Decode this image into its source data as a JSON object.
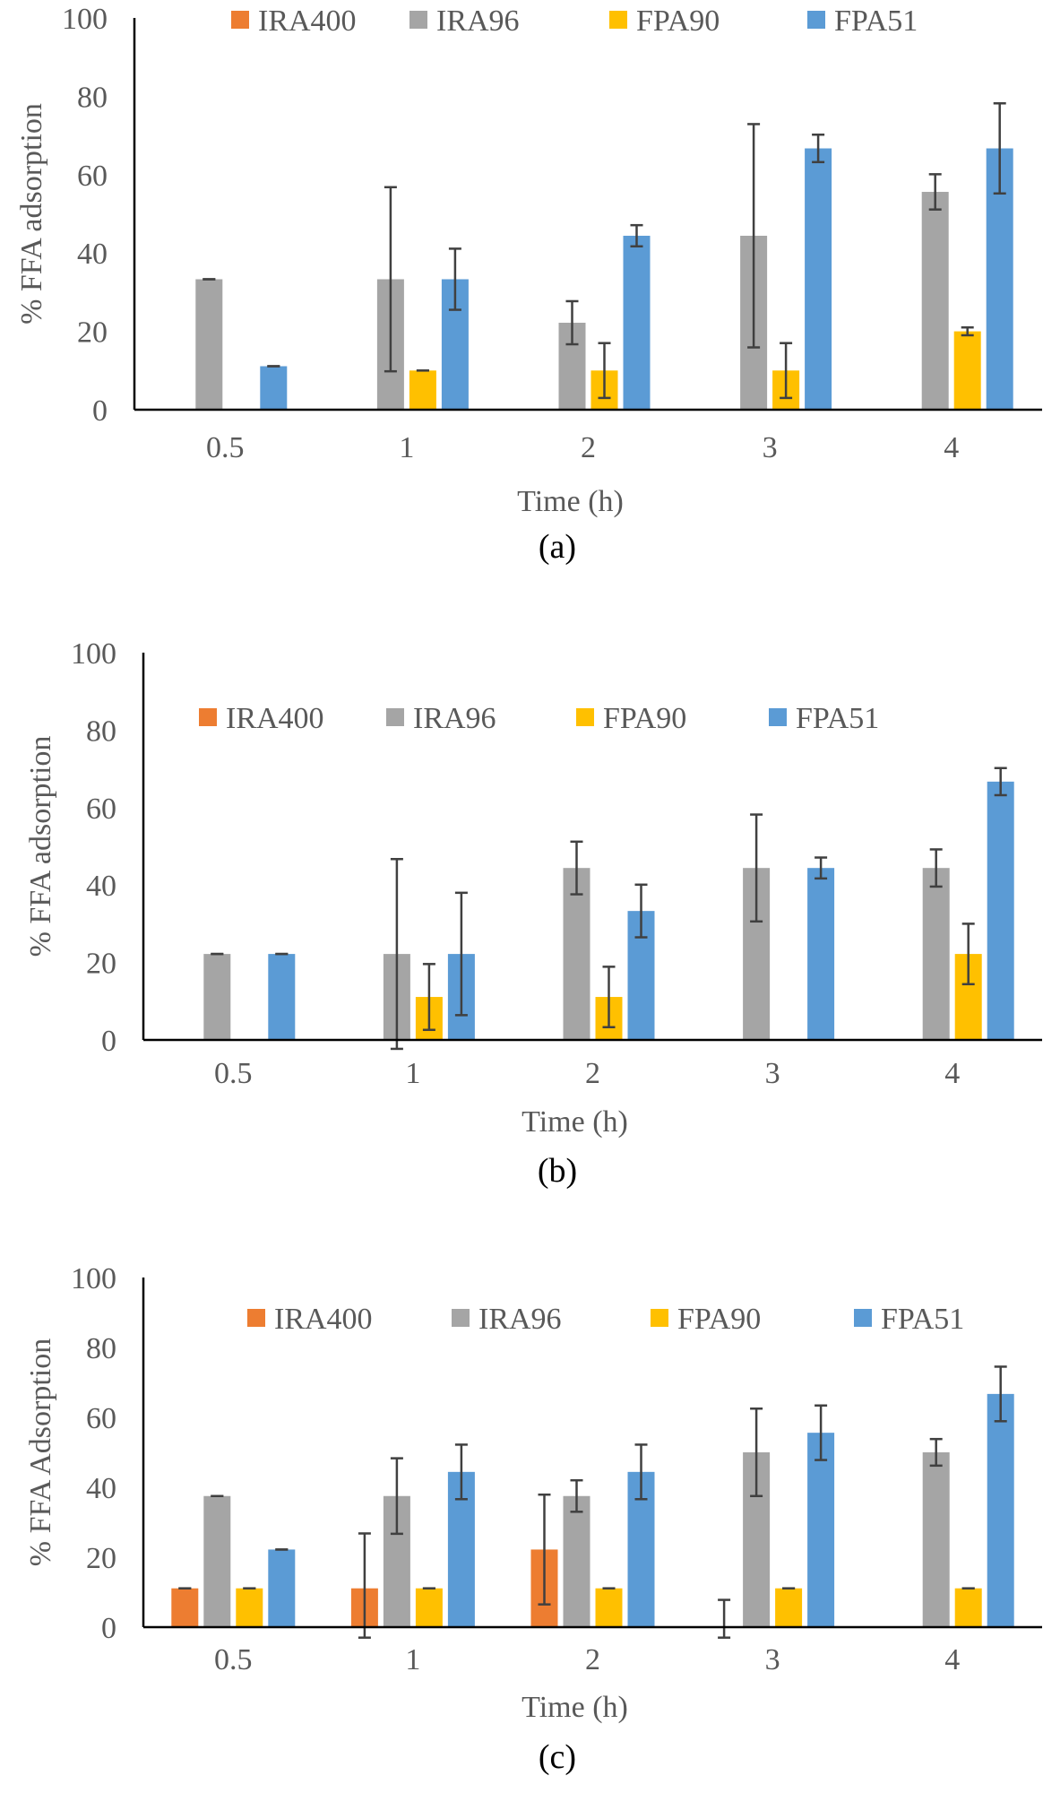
{
  "colors": {
    "IRA400": "#ED7D31",
    "IRA96": "#A5A5A5",
    "FPA90": "#FFC000",
    "FPA51": "#5B9BD5",
    "axis": "#000000",
    "error_bar": "#404040",
    "text": "#595959"
  },
  "chart_data": [
    {
      "type": "bar",
      "panel_label": "(a)",
      "xlabel": "Time (h)",
      "ylabel": "% FFA adsorption",
      "ylim": [
        0,
        100
      ],
      "yticks": [
        0,
        20,
        40,
        60,
        80,
        100
      ],
      "grid": false,
      "legend_position": "top",
      "categories": [
        "0.5",
        "1",
        "2",
        "3",
        "4"
      ],
      "series": [
        {
          "name": "IRA400",
          "values": [
            0,
            0,
            0,
            0,
            0
          ],
          "errors": [
            0,
            0,
            0,
            0,
            0
          ]
        },
        {
          "name": "IRA96",
          "values": [
            33.3,
            33.3,
            22.2,
            44.4,
            55.6
          ],
          "errors": [
            0,
            23.5,
            5.5,
            28.5,
            4.5
          ]
        },
        {
          "name": "FPA90",
          "values": [
            0,
            10,
            10,
            10,
            20
          ],
          "errors": [
            0,
            0,
            7,
            7,
            1
          ]
        },
        {
          "name": "FPA51",
          "values": [
            11.1,
            33.3,
            44.4,
            66.7,
            66.7
          ],
          "errors": [
            0,
            7.8,
            2.7,
            3.5,
            11.5
          ]
        }
      ]
    },
    {
      "type": "bar",
      "panel_label": "(b)",
      "xlabel": "Time (h)",
      "ylabel": "% FFA adsorption",
      "ylim": [
        0,
        100
      ],
      "yticks": [
        0,
        20,
        40,
        60,
        80,
        100
      ],
      "grid": false,
      "legend_position": "top",
      "categories": [
        "0.5",
        "1",
        "2",
        "3",
        "4"
      ],
      "series": [
        {
          "name": "IRA400",
          "values": [
            0,
            0,
            0,
            0,
            0
          ],
          "errors": [
            0,
            0,
            0,
            0,
            0
          ]
        },
        {
          "name": "IRA96",
          "values": [
            22.2,
            22.2,
            44.4,
            44.4,
            44.4
          ],
          "errors": [
            0,
            24.5,
            6.8,
            13.8,
            4.8
          ]
        },
        {
          "name": "FPA90",
          "values": [
            0,
            11.1,
            11.1,
            0,
            22.2
          ],
          "errors": [
            0,
            8.5,
            7.8,
            0,
            7.8
          ]
        },
        {
          "name": "FPA51",
          "values": [
            22.2,
            22.2,
            33.3,
            44.4,
            66.7
          ],
          "errors": [
            0,
            15.8,
            6.8,
            2.7,
            3.5
          ]
        }
      ]
    },
    {
      "type": "bar",
      "panel_label": "(c)",
      "xlabel": "Time (h)",
      "ylabel": "% FFA Adsorption",
      "ylim": [
        0,
        100
      ],
      "yticks": [
        0,
        20,
        40,
        60,
        80,
        100
      ],
      "grid": false,
      "legend_position": "top",
      "categories": [
        "0.5",
        "1",
        "2",
        "3",
        "4"
      ],
      "series": [
        {
          "name": "IRA400",
          "values": [
            11.1,
            11.1,
            22.2,
            0,
            0
          ],
          "errors": [
            0,
            15.7,
            15.7,
            7.8,
            0
          ]
        },
        {
          "name": "IRA96",
          "values": [
            37.5,
            37.5,
            37.5,
            50,
            50
          ],
          "errors": [
            0,
            10.8,
            4.5,
            12.5,
            3.8
          ]
        },
        {
          "name": "FPA90",
          "values": [
            11.1,
            11.1,
            11.1,
            11.1,
            11.1
          ],
          "errors": [
            0,
            0,
            0,
            0,
            0
          ]
        },
        {
          "name": "FPA51",
          "values": [
            22.2,
            44.4,
            44.4,
            55.6,
            66.7
          ],
          "errors": [
            0,
            7.8,
            7.8,
            7.8,
            7.8
          ]
        }
      ]
    }
  ]
}
